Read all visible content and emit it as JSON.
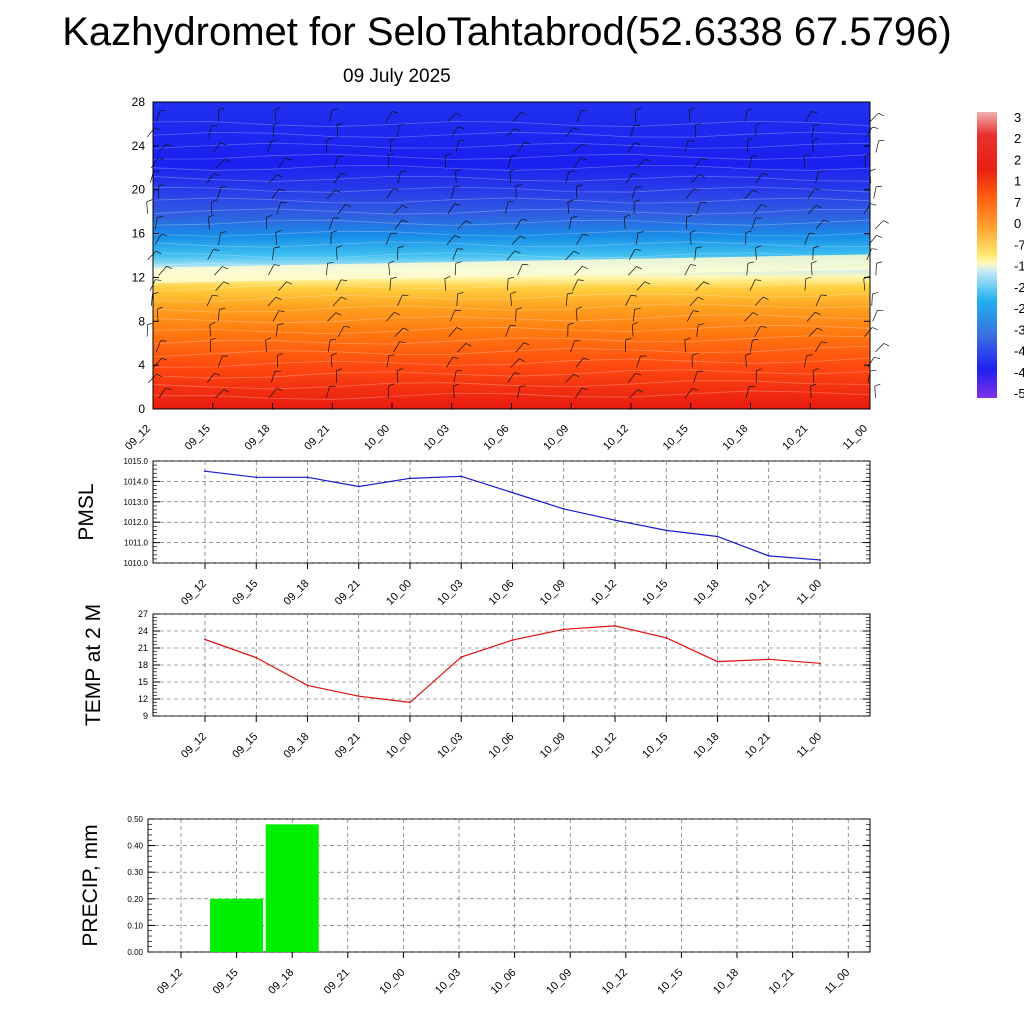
{
  "title": "Kazhydromet for SeloTahtabrod(52.6338 67.5796)",
  "subtitle": "09 July 2025",
  "colors": {
    "pmsl_line": "#1a1ad0",
    "temp_line": "#e01010",
    "precip_bar": "#00ee00",
    "wind_barb": "#111111"
  },
  "chart_data": [
    {
      "type": "heatmap",
      "name": "temperature-height-section",
      "x": [
        "09_12",
        "09_15",
        "09_18",
        "09_21",
        "10_00",
        "10_03",
        "10_06",
        "10_09",
        "10_12",
        "10_15",
        "10_18",
        "10_21",
        "11_00"
      ],
      "ylim": [
        0,
        28
      ],
      "yticks": [
        0,
        4,
        8,
        12,
        16,
        20,
        24,
        28
      ],
      "freezing_level": [
        12.0,
        12.1,
        12.2,
        12.3,
        12.4,
        12.5,
        12.6,
        12.7,
        12.8,
        12.9,
        13.0,
        13.1,
        13.2
      ],
      "colorbar_labels": [
        "3",
        "2",
        "2",
        "1",
        "7",
        "0",
        "-7",
        "-1",
        "-2",
        "-2",
        "-3",
        "-4",
        "-4",
        "-5"
      ],
      "contains_wind_barbs": true,
      "grid": false
    },
    {
      "type": "line",
      "name": "pmsl",
      "ylabel": "PMSL",
      "x": [
        "09_12",
        "09_15",
        "09_18",
        "09_21",
        "10_00",
        "10_03",
        "10_06",
        "10_09",
        "10_12",
        "10_15",
        "10_18",
        "10_21",
        "11_00"
      ],
      "series": [
        {
          "values": [
            1014.5,
            1014.2,
            1014.2,
            1013.75,
            1014.15,
            1014.25,
            1013.45,
            1012.65,
            1012.1,
            1011.6,
            1011.3,
            1010.35,
            1010.15
          ]
        }
      ],
      "ylim": [
        1010.0,
        1015.0
      ],
      "yticks": [
        "1010.0",
        "1011.0",
        "1012.0",
        "1013.0",
        "1014.0",
        "1015.0"
      ],
      "grid": true
    },
    {
      "type": "line",
      "name": "temp-2m",
      "ylabel": "TEMP at 2 M",
      "x": [
        "09_12",
        "09_15",
        "09_18",
        "09_21",
        "10_00",
        "10_03",
        "10_06",
        "10_09",
        "10_12",
        "10_15",
        "10_18",
        "10_21",
        "11_00"
      ],
      "series": [
        {
          "values": [
            22.5,
            19.3,
            14.4,
            12.5,
            11.4,
            19.4,
            22.4,
            24.3,
            24.9,
            22.8,
            18.6,
            19.0,
            18.3
          ]
        }
      ],
      "ylim": [
        9,
        27
      ],
      "yticks": [
        "9",
        "12",
        "15",
        "18",
        "21",
        "24",
        "27"
      ],
      "grid": true
    },
    {
      "type": "bar",
      "name": "precip",
      "ylabel": "PRECIP, mm",
      "categories": [
        "09_12",
        "09_15",
        "09_18",
        "09_21",
        "10_00",
        "10_03",
        "10_06",
        "10_09",
        "10_12",
        "10_15",
        "10_18",
        "10_21",
        "11_00"
      ],
      "values": [
        0,
        0.2,
        0.48,
        0,
        0,
        0,
        0,
        0,
        0,
        0,
        0,
        0,
        0
      ],
      "ylim": [
        0,
        0.5
      ],
      "yticks": [
        "0.00",
        "0.10",
        "0.20",
        "0.30",
        "0.40",
        "0.50"
      ],
      "grid": true
    }
  ]
}
